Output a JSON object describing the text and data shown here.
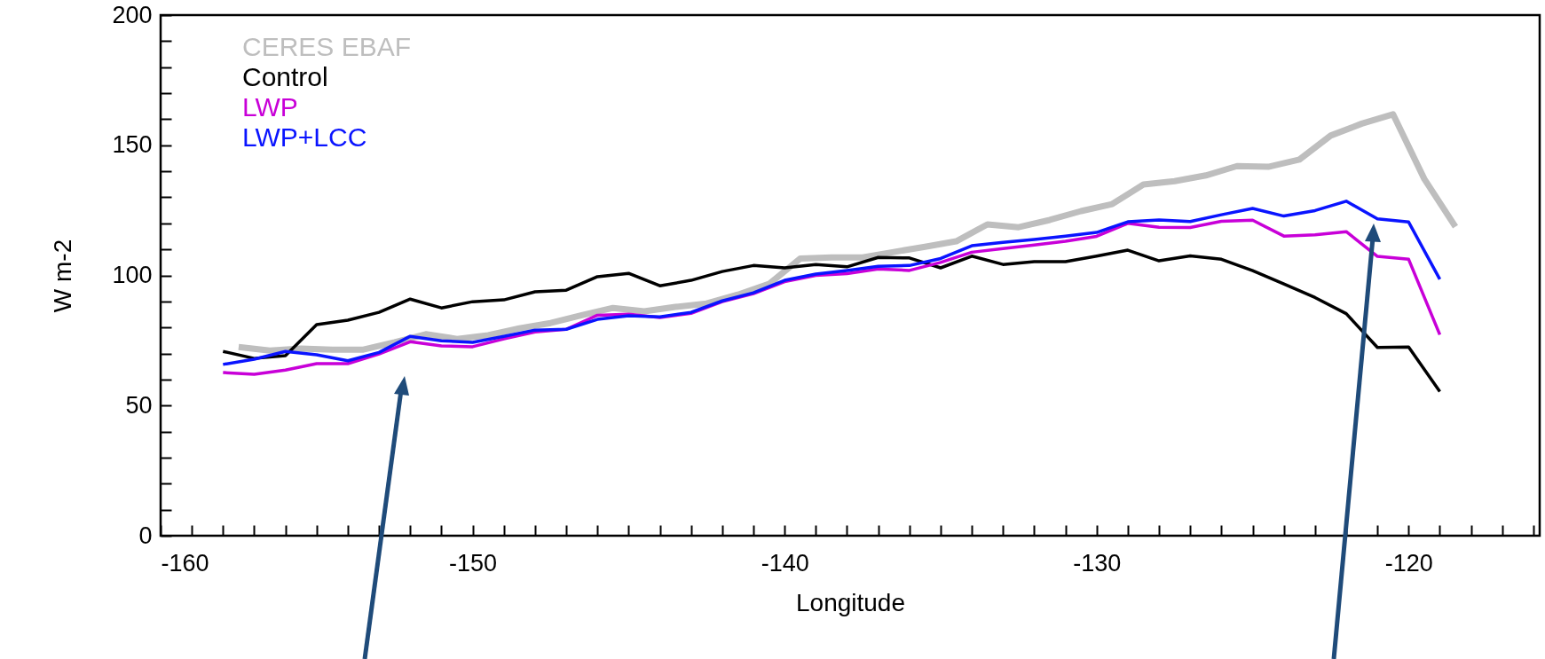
{
  "chart_data": {
    "type": "line",
    "xlabel": "Longitude",
    "ylabel": "W m-2",
    "xlim": [
      -160,
      -115.8
    ],
    "ylim": [
      0,
      200
    ],
    "xticks": [
      -160,
      {
        "value": -159,
        "label": null
      },
      {
        "value": -158,
        "label": null
      },
      {
        "value": -157,
        "label": null
      },
      {
        "value": -156,
        "label": null
      },
      {
        "value": -155,
        "label": null
      },
      {
        "value": -154,
        "label": null
      },
      {
        "value": -153,
        "label": null
      },
      {
        "value": -152,
        "label": null
      },
      {
        "value": -151,
        "label": null
      },
      -150,
      {
        "value": -149,
        "label": null
      },
      {
        "value": -148,
        "label": null
      },
      {
        "value": -147,
        "label": null
      },
      {
        "value": -146,
        "label": null
      },
      {
        "value": -145,
        "label": null
      },
      {
        "value": -144,
        "label": null
      },
      {
        "value": -143,
        "label": null
      },
      {
        "value": -142,
        "label": null
      },
      {
        "value": -141,
        "label": null
      },
      -140,
      {
        "value": -139,
        "label": null
      },
      {
        "value": -138,
        "label": null
      },
      {
        "value": -137,
        "label": null
      },
      {
        "value": -136,
        "label": null
      },
      {
        "value": -135,
        "label": null
      },
      {
        "value": -134,
        "label": null
      },
      {
        "value": -133,
        "label": null
      },
      {
        "value": -132,
        "label": null
      },
      {
        "value": -131,
        "label": null
      },
      -130,
      {
        "value": -129,
        "label": null
      },
      {
        "value": -128,
        "label": null
      },
      {
        "value": -127,
        "label": null
      },
      {
        "value": -126,
        "label": null
      },
      {
        "value": -125,
        "label": null
      },
      {
        "value": -124,
        "label": null
      },
      {
        "value": -123,
        "label": null
      },
      {
        "value": -122,
        "label": null
      },
      {
        "value": -121,
        "label": null
      },
      -120,
      {
        "value": -119,
        "label": null
      },
      {
        "value": -118,
        "label": null
      },
      {
        "value": -117,
        "label": null
      },
      {
        "value": -116,
        "label": null
      }
    ],
    "yticks": [
      0,
      {
        "value": 10,
        "label": null
      },
      {
        "value": 20,
        "label": null
      },
      {
        "value": 30,
        "label": null
      },
      {
        "value": 40,
        "label": null
      },
      50,
      {
        "value": 60,
        "label": null
      },
      {
        "value": 70,
        "label": null
      },
      {
        "value": 80,
        "label": null
      },
      {
        "value": 90,
        "label": null
      },
      100,
      {
        "value": 110,
        "label": null
      },
      {
        "value": 120,
        "label": null
      },
      {
        "value": 130,
        "label": null
      },
      {
        "value": 140,
        "label": null
      },
      150,
      {
        "value": 160,
        "label": null
      },
      {
        "value": 170,
        "label": null
      },
      {
        "value": 180,
        "label": null
      },
      {
        "value": 190,
        "label": null
      },
      200
    ],
    "grid": false,
    "legend": "top left",
    "line_style": "solid",
    "marker": "none",
    "series": [
      {
        "name": "CERES EBAF",
        "color": "#bebebe",
        "x": [
          -157.5,
          -156.5,
          -155.5,
          -154.5,
          -153.5,
          -152.5,
          -151.5,
          -150.5,
          -149.5,
          -148.5,
          -147.5,
          -146.5,
          -145.5,
          -144.5,
          -143.5,
          -142.5,
          -141.5,
          -140.5,
          -139.5,
          -138.5,
          -137.5,
          -136.5,
          -135.5,
          -134.5,
          -133.5,
          -132.5,
          -131.5,
          -130.5,
          -129.5,
          -128.5,
          -127.5,
          -126.5,
          -125.5,
          -124.5,
          -123.5,
          -122.5,
          -121.5,
          -120.5,
          -119.5,
          -118.5
        ],
        "values": [
          72.5,
          71.1,
          71.9,
          71.5,
          71.5,
          74.3,
          77.4,
          75.6,
          77,
          79.7,
          81.7,
          84.7,
          87.5,
          86.2,
          87.9,
          89.2,
          92.6,
          96.7,
          106.5,
          106.9,
          106.9,
          109,
          111,
          113.1,
          119.6,
          118.5,
          121.3,
          124.7,
          127.4,
          134.9,
          136.2,
          138.4,
          142,
          141.7,
          144.5,
          153.7,
          158.3,
          161.9,
          137.1,
          118.7
        ]
      },
      {
        "name": "Control",
        "color": "#000000",
        "x": [
          -158,
          -157,
          -156,
          -155,
          -154,
          -153,
          -152,
          -151,
          -150,
          -149,
          -148,
          -147,
          -146,
          -145,
          -144,
          -143,
          -142,
          -141,
          -140,
          -139,
          -138,
          -137,
          -136,
          -135,
          -134,
          -133,
          -132,
          -131,
          -130,
          -129,
          -128,
          -127,
          -126,
          -125,
          -124,
          -123,
          -122,
          -121,
          -120,
          -119
        ],
        "values": [
          70.8,
          68.1,
          69.2,
          81.1,
          82.8,
          85.8,
          90.9,
          87.5,
          89.9,
          90.6,
          93.7,
          94.3,
          99.5,
          100.8,
          96,
          98.1,
          101.5,
          103.8,
          102.9,
          104.2,
          103.3,
          106.9,
          106.7,
          102.9,
          107.4,
          104.2,
          105.3,
          105.3,
          107.4,
          109.7,
          105.6,
          107.5,
          106.2,
          101.8,
          96.7,
          91.5,
          85.3,
          72.3,
          72.5,
          55.4
        ]
      },
      {
        "name": "LWP",
        "color": "#c800d8",
        "x": [
          -158,
          -157,
          -156,
          -155,
          -154,
          -153,
          -152,
          -151,
          -150,
          -149,
          -148,
          -147,
          -146,
          -145,
          -144,
          -143,
          -142,
          -141,
          -140,
          -139,
          -138,
          -137,
          -136,
          -135,
          -134,
          -133,
          -132,
          -131,
          -130,
          -129,
          -128,
          -127,
          -126,
          -125,
          -124,
          -123,
          -122,
          -121,
          -120,
          -119
        ],
        "values": [
          62.7,
          62,
          63.6,
          66.1,
          66.1,
          69.8,
          74.5,
          72.9,
          72.6,
          75.6,
          78.3,
          79.3,
          84.7,
          85.1,
          83.8,
          85.4,
          89.9,
          93,
          97.6,
          100,
          100.7,
          102.5,
          101.9,
          105,
          108.9,
          110.3,
          111.7,
          113.1,
          115,
          120,
          118.5,
          118.4,
          120.8,
          121.2,
          115.1,
          115.6,
          116.8,
          107.3,
          106.2,
          77.2
        ]
      },
      {
        "name": "LWP+LCC",
        "color": "#0a14ff",
        "x": [
          -158,
          -157,
          -156,
          -155,
          -154,
          -153,
          -152,
          -151,
          -150,
          -149,
          -148,
          -147,
          -146,
          -145,
          -144,
          -143,
          -142,
          -141,
          -140,
          -139,
          -138,
          -137,
          -136,
          -135,
          -134,
          -133,
          -132,
          -131,
          -130,
          -129,
          -128,
          -127,
          -126,
          -125,
          -124,
          -123,
          -122,
          -121,
          -120,
          -119
        ],
        "values": [
          65.8,
          67.8,
          70.8,
          69.5,
          67.2,
          70.4,
          76.6,
          74.9,
          74.3,
          76.6,
          79,
          79.3,
          83.1,
          84.5,
          84.1,
          85.8,
          90.2,
          93.3,
          98.1,
          100.5,
          101.9,
          103.5,
          103.8,
          106.5,
          111.4,
          112.7,
          113.8,
          115.1,
          116.5,
          120.6,
          121.3,
          120.7,
          123.3,
          125.7,
          122.8,
          124.9,
          128.5,
          121.7,
          120.5,
          98.5
        ]
      }
    ]
  }
}
